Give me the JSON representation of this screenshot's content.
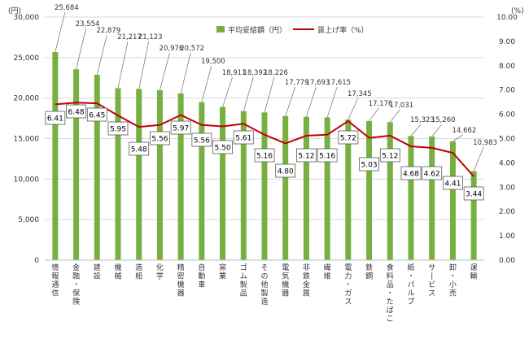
{
  "chart_data": {
    "type": "bar",
    "left_unit": "(円)",
    "right_unit": "(%)",
    "left_ticks": [
      "0",
      "5,000",
      "10,000",
      "15,000",
      "20,000",
      "25,000",
      "30,000"
    ],
    "right_ticks": [
      "0.00",
      "1.00",
      "2.00",
      "3.00",
      "4.00",
      "5.00",
      "6.00",
      "7.00",
      "8.00",
      "9.00",
      "10.00"
    ],
    "ylim_left": [
      0,
      30000
    ],
    "ylim_right": [
      0,
      10
    ],
    "legend_position": "top-center",
    "grid": true,
    "categories": [
      "情報通信",
      "金融・保険",
      "建設",
      "機械",
      "造船",
      "化学",
      "精密機器",
      "自動車",
      "窯業",
      "ゴム製品",
      "その他製造",
      "電気機器",
      "非鉄金属",
      "繊維",
      "電力・ガス",
      "鉄鋼",
      "食料品・たばこ",
      "紙・パルプ",
      "サービス",
      "卸・小売",
      "運輸"
    ],
    "series": [
      {
        "name": "平均妥結額（円）",
        "type": "bar",
        "axis": "left",
        "color": "#77B041",
        "values": [
          25684,
          23554,
          22879,
          21217,
          21123,
          20976,
          20572,
          19500,
          18911,
          18392,
          18226,
          17779,
          17693,
          17615,
          17345,
          17176,
          17031,
          15323,
          15260,
          14662,
          10983
        ],
        "labels": [
          "25,684",
          "23,554",
          "22,879",
          "21,217",
          "21,123",
          "20,976",
          "20,572",
          "19,500",
          "18,911",
          "18,392",
          "18,226",
          "17,779",
          "17,693",
          "17,615",
          "17,345",
          "17,176",
          "17,031",
          "15,323",
          "15,260",
          "14,662",
          "10,983"
        ]
      },
      {
        "name": "賃上げ率（%）",
        "type": "line",
        "axis": "right",
        "color": "#C00000",
        "values": [
          6.41,
          6.48,
          6.45,
          5.95,
          5.48,
          5.56,
          5.97,
          5.56,
          5.5,
          5.61,
          5.16,
          4.8,
          5.12,
          5.16,
          5.72,
          5.03,
          5.12,
          4.68,
          4.62,
          4.41,
          3.44
        ],
        "labels": [
          "6.41",
          "6.48",
          "6.45",
          "5.95",
          "5.48",
          "5.56",
          "5.97",
          "5.56",
          "5.50",
          "5.61",
          "5.16",
          "4.80",
          "5.12",
          "5.16",
          "5.72",
          "5.03",
          "5.12",
          "4.68",
          "4.62",
          "4.41",
          "3.44"
        ]
      }
    ]
  }
}
